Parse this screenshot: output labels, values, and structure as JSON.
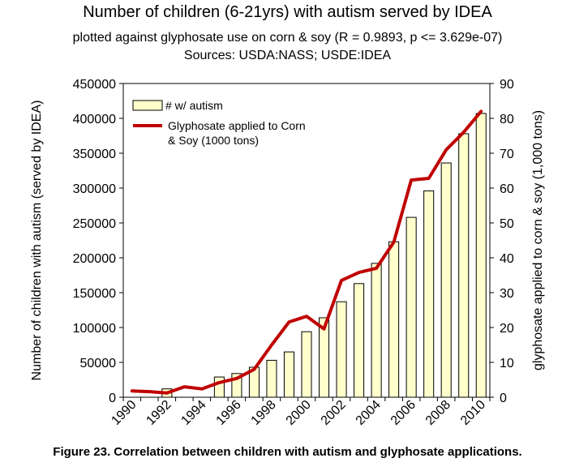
{
  "title": "Number of children (6-21yrs) with autism served by IDEA",
  "subtitle": "plotted against glyphosate use on corn & soy (R = 0.9893, p <= 3.629e-07)",
  "sources": "Sources: USDA:NASS; USDE:IDEA",
  "caption": "Figure 23. Correlation between children with autism and glyphosate applications.",
  "colors": {
    "bar_fill": "#ffffcc",
    "bar_stroke": "#000000",
    "line": "#c00000"
  },
  "chart_data": {
    "type": "bar",
    "title": "Number of children (6-21yrs) with autism served by IDEA",
    "categories": [
      "1990",
      "1991",
      "1992",
      "1993",
      "1994",
      "1995",
      "1996",
      "1997",
      "1998",
      "1999",
      "2000",
      "2001",
      "2002",
      "2003",
      "2004",
      "2005",
      "2006",
      "2007",
      "2008",
      "2009",
      "2010"
    ],
    "x_tick_labels": [
      "1990",
      "1992",
      "1994",
      "1996",
      "1998",
      "2000",
      "2002",
      "2004",
      "2006",
      "2008",
      "2010"
    ],
    "ylabel": "Number of children with autism (served by IDEA)",
    "ylim": [
      0,
      450000
    ],
    "y_ticks": [
      "0",
      "50000",
      "100000",
      "150000",
      "200000",
      "250000",
      "300000",
      "350000",
      "400000",
      "450000"
    ],
    "y2label": "glyphosate applied to corn & soy (1,000 tons)",
    "y2lim": [
      0,
      90
    ],
    "y2_ticks": [
      "0",
      "10",
      "20",
      "30",
      "40",
      "50",
      "60",
      "70",
      "80",
      "90"
    ],
    "legend_position": "top-left",
    "grid": false,
    "series": [
      {
        "name": "# w/ autism",
        "type": "bar",
        "axis": "left",
        "values": [
          0,
          0,
          12000,
          0,
          0,
          29000,
          34000,
          43000,
          53000,
          65000,
          94000,
          114000,
          137000,
          163000,
          192000,
          223000,
          258000,
          296000,
          336000,
          378000,
          407000
        ]
      },
      {
        "name": "Glyphosate applied to Corn & Soy (1000 tons)",
        "legend_lines": [
          "Glyphosate applied to Corn",
          "& Soy (1000 tons)"
        ],
        "type": "line",
        "axis": "right",
        "values": [
          1.8,
          1.6,
          1.2,
          3.0,
          2.4,
          4.2,
          5.4,
          8.0,
          15.0,
          21.6,
          23.2,
          19.6,
          33.5,
          35.8,
          37.0,
          44.5,
          62.3,
          62.8,
          71.0,
          76.0,
          82.0
        ]
      }
    ]
  }
}
